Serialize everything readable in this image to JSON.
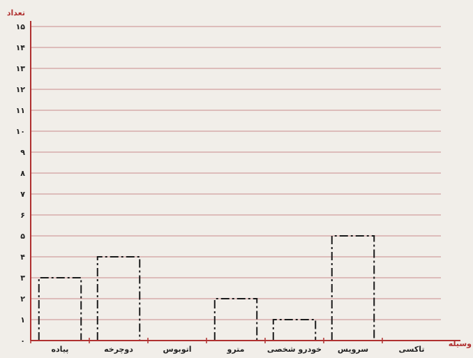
{
  "caption": "",
  "chart_data": {
    "type": "bar",
    "title": "",
    "ylabel": "تعداد",
    "xlabel": "وسیله",
    "y_ticks": [
      "۰",
      "۱",
      "۲",
      "۳",
      "۴",
      "۵",
      "۶",
      "۷",
      "۸",
      "۹",
      "۱۰",
      "۱۱",
      "۱۲",
      "۱۳",
      "۱۴",
      "۱۵"
    ],
    "ylim": [
      0,
      15
    ],
    "categories": [
      "تاکسی",
      "سرویس",
      "خودرو شخصی",
      "مترو",
      "اتوبوس",
      "دوچرخه",
      "پیاده"
    ],
    "values": [
      0,
      5,
      1,
      2,
      0,
      4,
      3
    ],
    "grid": true,
    "colors": {
      "axis": "#b03030",
      "grid": "#c98a8a",
      "bars": "#1a1a1a",
      "background": "#f1eee9"
    }
  }
}
